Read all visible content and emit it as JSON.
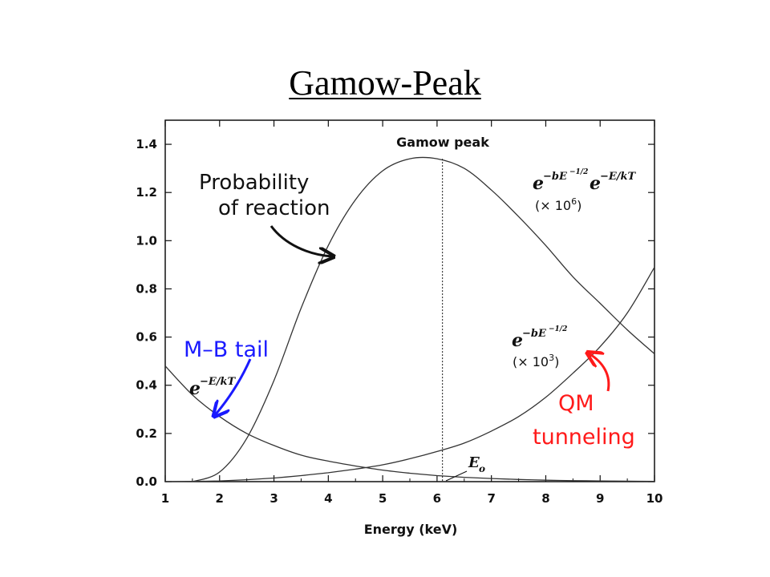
{
  "title": "Gamow-Peak",
  "chart_data": {
    "type": "line",
    "title": "Gamow-Peak",
    "xlabel": "Energy (keV)",
    "ylabel": "",
    "xlim": [
      1,
      10
    ],
    "ylim": [
      0,
      1.5
    ],
    "x_ticks": [
      "1",
      "2",
      "3",
      "4",
      "5",
      "6",
      "7",
      "8",
      "9",
      "10"
    ],
    "y_ticks": [
      "0.0",
      "0.2",
      "0.4",
      "0.6",
      "0.8",
      "1.0",
      "1.2",
      "1.4"
    ],
    "grid": false,
    "series": [
      {
        "x": [
          1.0,
          1.5,
          2.0,
          2.5,
          3.0,
          3.5,
          4.0,
          4.5,
          5.0,
          5.5,
          6.0,
          6.5,
          7.0,
          7.5,
          8.0,
          8.5,
          9.0,
          9.5,
          10.0
        ],
        "values": [
          0.48,
          0.36,
          0.27,
          0.2,
          0.15,
          0.11,
          0.085,
          0.065,
          0.048,
          0.035,
          0.025,
          0.018,
          0.013,
          0.009,
          0.006,
          0.004,
          0.003,
          0.002,
          0.001
        ]
      },
      {
        "x": [
          1.0,
          1.5,
          2.0,
          2.5,
          3.0,
          3.5,
          4.0,
          4.5,
          5.0,
          5.5,
          6.0,
          6.5,
          7.0,
          7.5,
          8.0,
          8.5,
          9.0,
          9.5,
          10.0
        ],
        "values": [
          0.0,
          0.001,
          0.003,
          0.008,
          0.015,
          0.025,
          0.037,
          0.052,
          0.07,
          0.095,
          0.125,
          0.16,
          0.21,
          0.27,
          0.35,
          0.45,
          0.56,
          0.7,
          0.89
        ]
      },
      {
        "x": [
          1.5,
          2.0,
          2.5,
          3.0,
          3.5,
          4.0,
          4.5,
          5.0,
          5.5,
          6.0,
          6.5,
          7.0,
          7.5,
          8.0,
          8.5,
          9.0,
          9.5,
          10.0
        ],
        "values": [
          0.0,
          0.04,
          0.18,
          0.42,
          0.72,
          0.98,
          1.17,
          1.29,
          1.34,
          1.34,
          1.3,
          1.21,
          1.1,
          0.98,
          0.85,
          0.74,
          0.63,
          0.53
        ]
      }
    ],
    "peak_x": 6.1,
    "annotations": {
      "gamow_peak": "Gamow peak",
      "probability_line1": "Probability",
      "probability_line2": "of reaction",
      "mb_tail": "M–B tail",
      "qm_line1": "QM",
      "qm_line2": "tunneling",
      "eo_base": "E",
      "eo_sub": "o",
      "mb_formula_base": "e",
      "mb_formula_exp": "−E/kT",
      "tunnel_formula_base": "e",
      "tunnel_formula_exp": "−bE",
      "tunnel_formula_exp2": "−1/2",
      "tunnel_scale_pre": "(× 10",
      "tunnel_scale_exp": "3",
      "tunnel_scale_post": ")",
      "gamow_formula_base1": "e",
      "gamow_formula_exp1": "−bE",
      "gamow_formula_exp1b": "−1/2",
      "gamow_formula_base2": "e",
      "gamow_formula_exp2": "−E/kT",
      "gamow_scale_pre": "(× 10",
      "gamow_scale_exp": "6",
      "gamow_scale_post": ")"
    },
    "colors": {
      "curves": "#333333",
      "mb_annotation": "#1a1aff",
      "qm_annotation": "#ff1a1a",
      "text": "#111111"
    }
  }
}
